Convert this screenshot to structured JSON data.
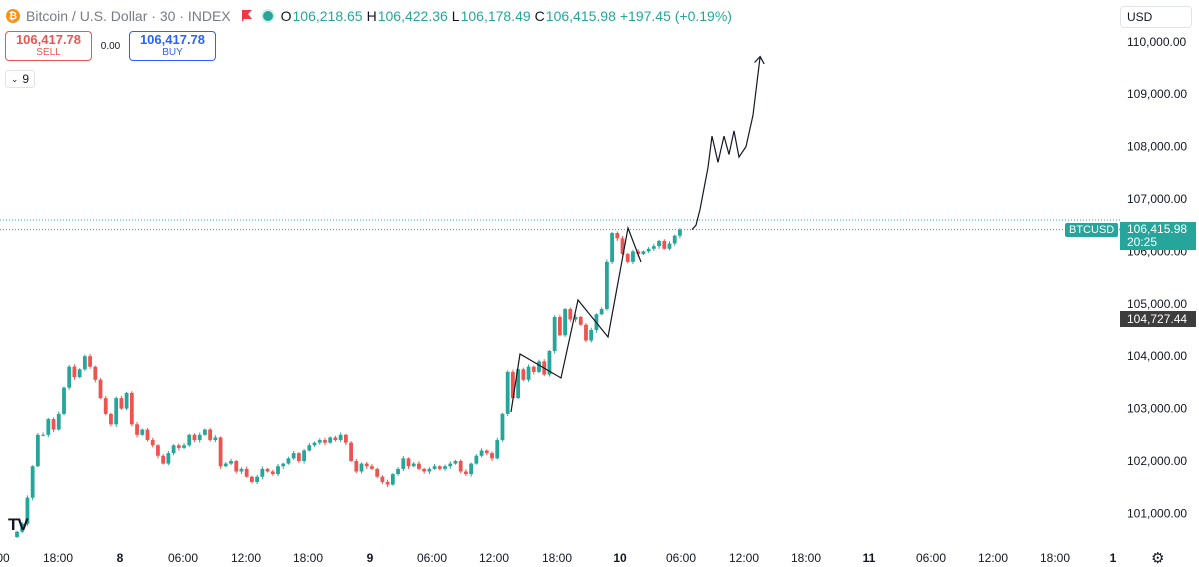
{
  "header": {
    "coin_glyph": "₿",
    "title": "Bitcoin / U.S. Dollar · 30 · INDEX",
    "open_label": "O",
    "open": "106,218.65",
    "high_label": "H",
    "high": "106,422.36",
    "low_label": "L",
    "low": "106,178.49",
    "close_label": "C",
    "close": "106,415.98",
    "change": "+197.45 (+0.19%)"
  },
  "trade": {
    "sell_price": "106,417.78",
    "sell_label": "SELL",
    "spread": "0.00",
    "buy_price": "106,417.78",
    "buy_label": "BUY"
  },
  "indicators_toggle": "9",
  "currency": "USD",
  "symbol_tag": "BTCUSD",
  "last_price": "106,415.98",
  "countdown": "20:25",
  "marker_price": "104,727.44",
  "colors": {
    "up": "#26a69a",
    "down": "#ef5350",
    "accent": "#2962ff"
  },
  "chart_data": {
    "type": "candlestick",
    "y_ticks": [
      "101,000.00",
      "102,000.00",
      "103,000.00",
      "104,000.00",
      "105,000.00",
      "106,000.00",
      "107,000.00",
      "108,000.00",
      "109,000.00",
      "110,000.00"
    ],
    "y_values": [
      101000,
      102000,
      103000,
      104000,
      105000,
      106000,
      107000,
      108000,
      109000,
      110000
    ],
    "x_ticks": [
      "00",
      "18:00",
      "8",
      "06:00",
      "12:00",
      "18:00",
      "9",
      "06:00",
      "12:00",
      "18:00",
      "10",
      "06:00",
      "12:00",
      "18:00",
      "11",
      "06:00",
      "12:00",
      "18:00",
      "1"
    ],
    "closes": [
      100650,
      100800,
      101300,
      101900,
      102500,
      102500,
      102800,
      102600,
      102900,
      103400,
      103800,
      103600,
      103750,
      104000,
      103800,
      103550,
      103200,
      102900,
      102700,
      103200,
      103000,
      103300,
      102700,
      102500,
      102600,
      102400,
      102300,
      102100,
      101950,
      102150,
      102300,
      102250,
      102300,
      102500,
      102400,
      102500,
      102600,
      102400,
      102450,
      101900,
      101950,
      102000,
      101800,
      101850,
      101700,
      101600,
      101700,
      101850,
      101800,
      101750,
      101900,
      101950,
      102050,
      102150,
      102000,
      102200,
      102300,
      102350,
      102400,
      102350,
      102450,
      102400,
      102500,
      102350,
      102000,
      101800,
      101950,
      101900,
      101850,
      101700,
      101600,
      101550,
      101750,
      101850,
      102050,
      101900,
      101950,
      101850,
      101800,
      101850,
      101900,
      101850,
      101900,
      101950,
      102000,
      101800,
      101750,
      101950,
      102100,
      102200,
      102150,
      102050,
      102400,
      102900,
      103700,
      103200,
      103750,
      103550,
      103800,
      103700,
      103900,
      103650,
      104100,
      104750,
      104400,
      104900,
      104700,
      104750,
      104600,
      104300,
      104500,
      104800,
      104900,
      105800,
      106350,
      106250,
      105950,
      105800,
      106000,
      105950,
      106000,
      106050,
      106100,
      106200,
      106050,
      106150,
      106300,
      106416
    ],
    "extrapolation": [
      106416,
      106500,
      106800,
      107200,
      107600,
      108200,
      107700,
      108200,
      107850,
      108300,
      107800,
      108000,
      108600,
      109700
    ],
    "lines": {
      "last_price": 106416,
      "marker": 104727,
      "dotted_high": 106600
    }
  }
}
